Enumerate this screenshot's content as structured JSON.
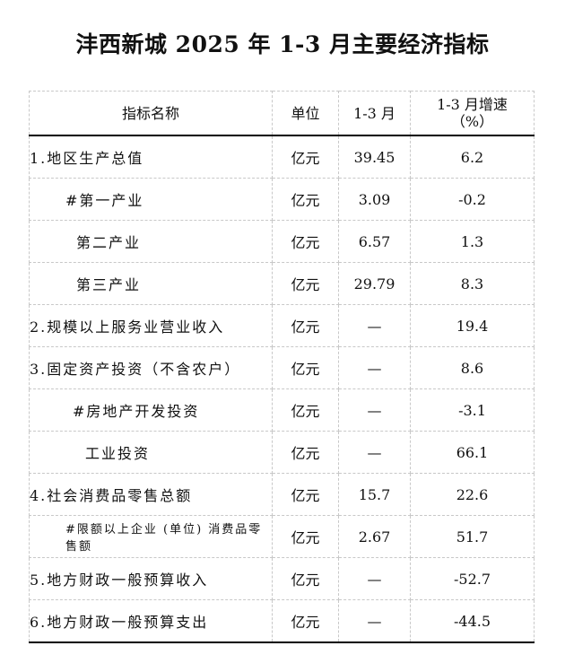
{
  "title": "沣西新城 2025 年 1-3 月主要经济指标",
  "headers": {
    "name": "指标名称",
    "unit": "单位",
    "value": "1-3 月",
    "growth_line1": "1-3 月增速",
    "growth_line2": "（%）"
  },
  "rows": [
    {
      "name": "1.地区生产总值",
      "unit": "亿元",
      "value": "39.45",
      "growth": "6.2"
    },
    {
      "name": "#第一产业",
      "unit": "亿元",
      "value": "3.09",
      "growth": "-0.2"
    },
    {
      "name": "第二产业",
      "unit": "亿元",
      "value": "6.57",
      "growth": "1.3"
    },
    {
      "name": "第三产业",
      "unit": "亿元",
      "value": "29.79",
      "growth": "8.3"
    },
    {
      "name": "2.规模以上服务业营业收入",
      "unit": "亿元",
      "value": "—",
      "growth": "19.4"
    },
    {
      "name": "3.固定资产投资（不含农户）",
      "unit": "亿元",
      "value": "—",
      "growth": "8.6"
    },
    {
      "name": "#房地产开发投资",
      "unit": "亿元",
      "value": "—",
      "growth": "-3.1"
    },
    {
      "name": "工业投资",
      "unit": "亿元",
      "value": "—",
      "growth": "66.1"
    },
    {
      "name": "4.社会消费品零售总额",
      "unit": "亿元",
      "value": "15.7",
      "growth": "22.6"
    },
    {
      "name": "#限额以上企业 (单位) 消费品零售额",
      "unit": "亿元",
      "value": "2.67",
      "growth": "51.7"
    },
    {
      "name": "5.地方财政一般预算收入",
      "unit": "亿元",
      "value": "—",
      "growth": "-52.7"
    },
    {
      "name": "6.地方财政一般预算支出",
      "unit": "亿元",
      "value": "—",
      "growth": "-44.5"
    }
  ]
}
